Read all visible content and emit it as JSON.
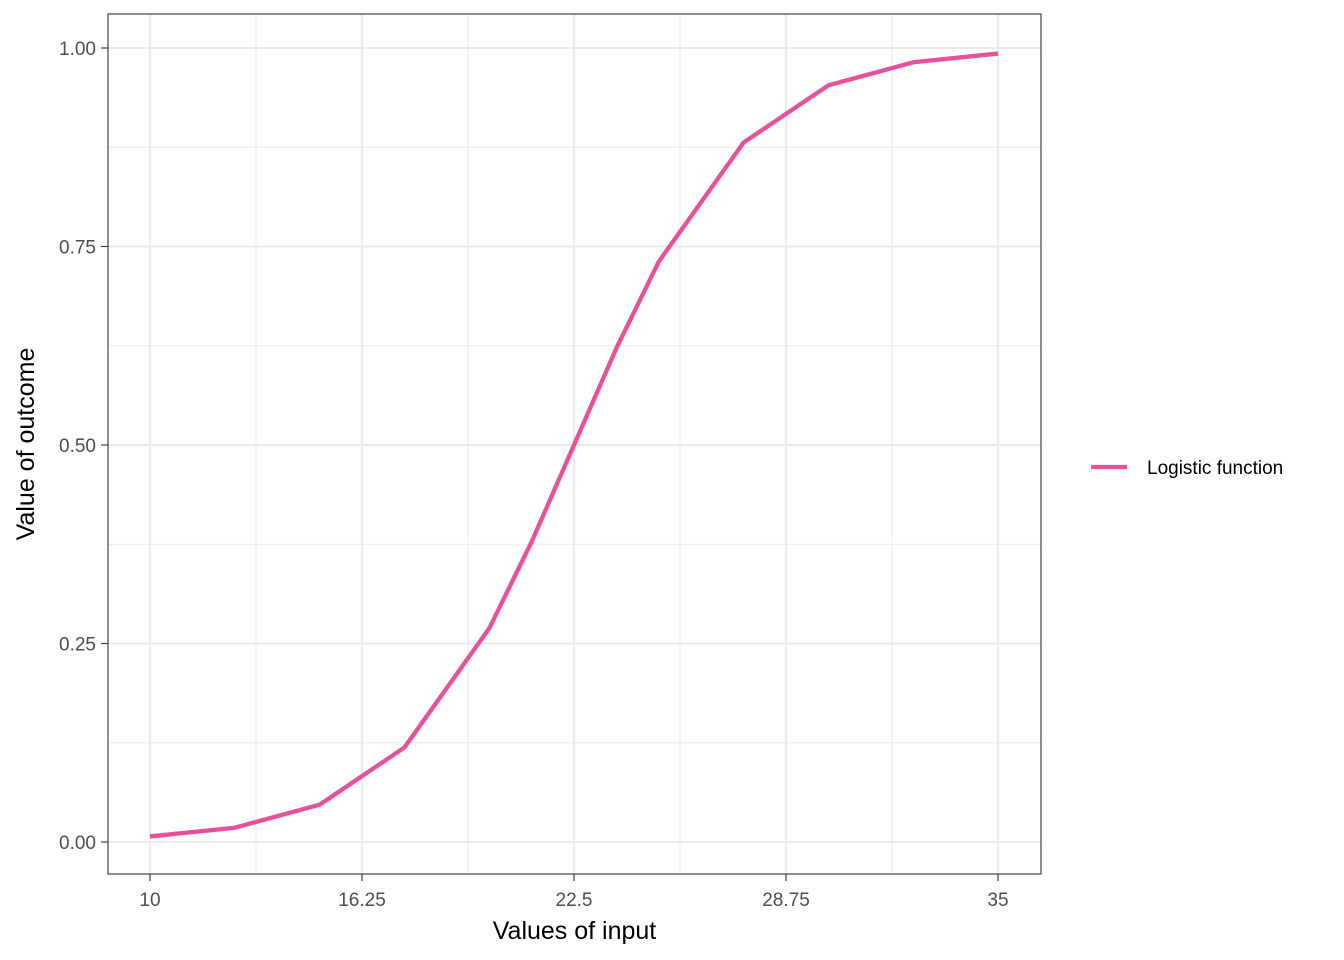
{
  "chart_data": {
    "type": "line",
    "title": "",
    "xlabel": "Values of input",
    "ylabel": "Value of outcome",
    "xlim": [
      9,
      31
    ],
    "ylim": [
      -0.04,
      1.04
    ],
    "x_ticks": [
      10,
      16.25,
      22.5,
      28.75,
      35
    ],
    "x_tick_labels": [
      "10",
      "16.25",
      "22.5",
      "28.75",
      "35"
    ],
    "y_ticks": [
      0,
      0.25,
      0.5,
      0.75,
      1
    ],
    "y_tick_labels": [
      "0.00",
      "0.25",
      "0.50",
      "0.75",
      "1.00"
    ],
    "grid": true,
    "legend_position": "right",
    "series": [
      {
        "name": "Logistic function",
        "color": "#e7519a",
        "x": [
          10,
          12.5,
          15,
          17.5,
          20,
          21.25,
          22.5,
          23.75,
          25,
          27.5,
          30,
          32.5,
          35
        ],
        "y": [
          0.007,
          0.018,
          0.047,
          0.119,
          0.269,
          0.378,
          0.5,
          0.622,
          0.731,
          0.881,
          0.953,
          0.982,
          0.993
        ]
      }
    ]
  }
}
